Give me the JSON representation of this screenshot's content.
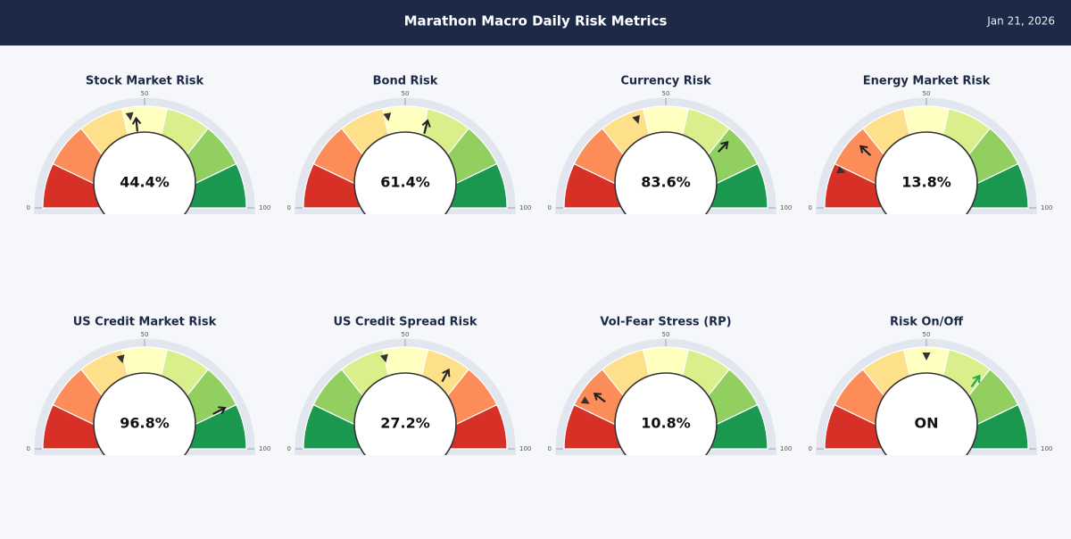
{
  "header": {
    "title": "Marathon Macro Daily Risk Metrics",
    "date": "Jan 21, 2026"
  },
  "chart_data": [
    {
      "type": "gauge",
      "title": "Stock Market Risk",
      "value": 44.4,
      "value_label": "44.4%",
      "needle": 47,
      "marker": 45,
      "min": 0,
      "max": 100,
      "ticks": [
        0,
        50,
        100
      ],
      "needle_color": "#222222",
      "bands": [
        "#d73027",
        "#fc8d59",
        "#fee08b",
        "#ffffbf",
        "#d9ef8b",
        "#91cf60",
        "#1a9850"
      ]
    },
    {
      "type": "gauge",
      "title": "Bond Risk",
      "value": 61.4,
      "value_label": "61.4%",
      "needle": 58,
      "marker": 44,
      "min": 0,
      "max": 100,
      "ticks": [
        0,
        50,
        100
      ],
      "needle_color": "#222222",
      "bands": [
        "#d73027",
        "#fc8d59",
        "#fee08b",
        "#ffffbf",
        "#d9ef8b",
        "#91cf60",
        "#1a9850"
      ]
    },
    {
      "type": "gauge",
      "title": "Currency Risk",
      "value": 83.6,
      "value_label": "83.6%",
      "needle": 74,
      "marker": 40,
      "min": 0,
      "max": 100,
      "ticks": [
        0,
        50,
        100
      ],
      "needle_color": "#222222",
      "bands": [
        "#d73027",
        "#fc8d59",
        "#fee08b",
        "#ffffbf",
        "#d9ef8b",
        "#91cf60",
        "#1a9850"
      ]
    },
    {
      "type": "gauge",
      "title": "Energy Market Risk",
      "value": 13.8,
      "value_label": "13.8%",
      "needle": 24,
      "marker": 13,
      "min": 0,
      "max": 100,
      "ticks": [
        0,
        50,
        100
      ],
      "needle_color": "#222222",
      "bands": [
        "#d73027",
        "#fc8d59",
        "#fee08b",
        "#ffffbf",
        "#d9ef8b",
        "#91cf60",
        "#1a9850"
      ]
    },
    {
      "type": "gauge",
      "title": "US Credit Market Risk",
      "value": 96.8,
      "value_label": "96.8%",
      "needle": 85,
      "marker": 42,
      "min": 0,
      "max": 100,
      "ticks": [
        0,
        50,
        100
      ],
      "needle_color": "#222222",
      "bands": [
        "#d73027",
        "#fc8d59",
        "#fee08b",
        "#ffffbf",
        "#d9ef8b",
        "#91cf60",
        "#1a9850"
      ]
    },
    {
      "type": "gauge",
      "title": "US Credit Spread Risk",
      "value": 27.2,
      "value_label": "27.2%",
      "needle": 66,
      "marker": 43,
      "min": 0,
      "max": 100,
      "ticks": [
        0,
        50,
        100
      ],
      "needle_color": "#222222",
      "bands": [
        "#1a9850",
        "#91cf60",
        "#d9ef8b",
        "#ffffbf",
        "#fee08b",
        "#fc8d59",
        "#d73027"
      ]
    },
    {
      "type": "gauge",
      "title": "Vol-Fear Stress (RP)",
      "value": 10.8,
      "value_label": "10.8%",
      "needle": 21,
      "marker": 17,
      "min": 0,
      "max": 100,
      "ticks": [
        0,
        50,
        100
      ],
      "needle_color": "#222222",
      "bands": [
        "#d73027",
        "#fc8d59",
        "#fee08b",
        "#ffffbf",
        "#d9ef8b",
        "#91cf60",
        "#1a9850"
      ]
    },
    {
      "type": "gauge",
      "title": "Risk On/Off",
      "value_label": "ON",
      "needle": 70,
      "marker": 50,
      "min": 0,
      "max": 100,
      "ticks": [
        0,
        50,
        100
      ],
      "needle_color": "#1fa84f",
      "bands": [
        "#d73027",
        "#fc8d59",
        "#fee08b",
        "#ffffbf",
        "#d9ef8b",
        "#91cf60",
        "#1a9850"
      ]
    }
  ]
}
